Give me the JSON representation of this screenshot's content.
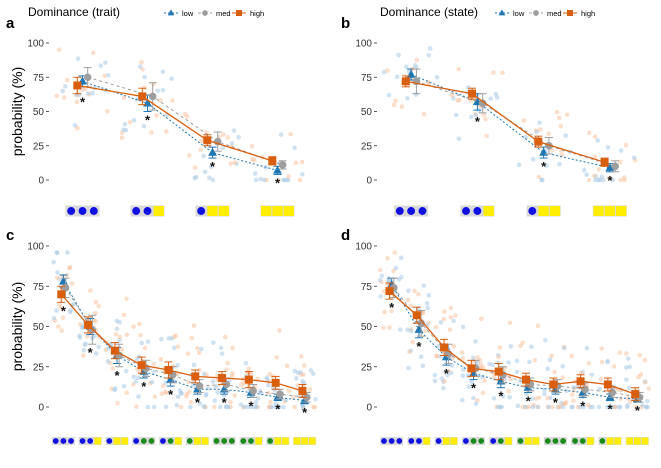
{
  "colors": {
    "low": "#1f77b4",
    "med": "#9e9e9e",
    "high": "#d95f0e",
    "jitter_low": "#a9cbe6",
    "jitter_high": "#f7c3a0",
    "blue_dot": "#1010e0",
    "green_dot": "#1a8a1a",
    "yellow_square": "#ffee00",
    "tile_bg": "#d9d9d9"
  },
  "significance_marker": "*",
  "chart_data": [
    {
      "id": "a",
      "panel_label": "a",
      "type": "line",
      "legend_title": "Dominance (trait)",
      "legend": [
        "low",
        "med",
        "high"
      ],
      "ylabel": "probability (%)",
      "ylim": [
        0,
        100
      ],
      "yticks": [
        "0",
        "25",
        "50",
        "75",
        "100"
      ],
      "categories": [
        "3 blue",
        "2 blue + 1 yellow",
        "1 blue + 2 yellow",
        "3 yellow"
      ],
      "stimuli": [
        [
          "b",
          "b",
          "b"
        ],
        [
          "b",
          "b",
          "y"
        ],
        [
          "b",
          "y",
          "y"
        ],
        [
          "y",
          "y",
          "y"
        ]
      ],
      "series": [
        {
          "name": "low",
          "values": [
            72,
            56,
            20,
            7
          ],
          "err": [
            4,
            6,
            4,
            3
          ]
        },
        {
          "name": "med",
          "values": [
            75,
            61,
            28,
            11
          ],
          "err": [
            7,
            10,
            7,
            3
          ]
        },
        {
          "name": "high",
          "values": [
            69,
            61,
            29,
            14
          ],
          "err": [
            6,
            6,
            4,
            3
          ]
        }
      ],
      "significant": [
        true,
        true,
        true,
        true
      ]
    },
    {
      "id": "b",
      "panel_label": "b",
      "type": "line",
      "legend_title": "Dominance (state)",
      "legend": [
        "low",
        "med",
        "high"
      ],
      "ylabel": "",
      "ylim": [
        0,
        100
      ],
      "yticks": [
        "0",
        "25",
        "50",
        "75",
        "100"
      ],
      "categories": [
        "3 blue",
        "2 blue + 1 yellow",
        "1 blue + 2 yellow",
        "3 yellow"
      ],
      "stimuli": [
        [
          "b",
          "b",
          "b"
        ],
        [
          "b",
          "b",
          "y"
        ],
        [
          "b",
          "y",
          "y"
        ],
        [
          "y",
          "y",
          "y"
        ]
      ],
      "series": [
        {
          "name": "low",
          "values": [
            77,
            57,
            20,
            9
          ],
          "err": [
            4,
            6,
            4,
            3
          ]
        },
        {
          "name": "med",
          "values": [
            72,
            56,
            25,
            10
          ],
          "err": [
            9,
            7,
            6,
            4
          ]
        },
        {
          "name": "high",
          "values": [
            72,
            63,
            28,
            13
          ],
          "err": [
            4,
            4,
            4,
            3
          ]
        }
      ],
      "significant": [
        false,
        true,
        true,
        true
      ]
    },
    {
      "id": "c",
      "panel_label": "c",
      "type": "line",
      "legend_title": "",
      "legend": [],
      "ylabel": "probability (%)",
      "ylim": [
        0,
        100
      ],
      "yticks": [
        "0",
        "25",
        "50",
        "75",
        "100"
      ],
      "categories": [
        "bbb",
        "bb+y",
        "b+yy",
        "bgg",
        "bg+y",
        "g+yy",
        "ggg",
        "gg+y",
        "g+yy",
        "yyy"
      ],
      "stimuli": [
        [
          "b",
          "b",
          "b"
        ],
        [
          "b",
          "b",
          "y"
        ],
        [
          "b",
          "y",
          "y"
        ],
        [
          "b",
          "g",
          "g"
        ],
        [
          "b",
          "g",
          "y"
        ],
        [
          "g",
          "y",
          "y"
        ],
        [
          "g",
          "g",
          "g"
        ],
        [
          "g",
          "g",
          "y"
        ],
        [
          "g",
          "y",
          "y"
        ],
        [
          "y",
          "y",
          "y"
        ]
      ],
      "series": [
        {
          "name": "low",
          "values": [
            78,
            50,
            32,
            22,
            17,
            11,
            11,
            9,
            6,
            4
          ],
          "err": [
            4,
            5,
            5,
            4,
            4,
            3,
            3,
            3,
            2,
            2
          ]
        },
        {
          "name": "med",
          "values": [
            74,
            48,
            32,
            24,
            20,
            13,
            14,
            10,
            8,
            6
          ],
          "err": [
            6,
            9,
            7,
            5,
            5,
            4,
            4,
            4,
            3,
            3
          ]
        },
        {
          "name": "high",
          "values": [
            70,
            51,
            35,
            26,
            23,
            19,
            18,
            17,
            15,
            10
          ],
          "err": [
            5,
            5,
            5,
            5,
            5,
            4,
            4,
            5,
            4,
            4
          ]
        }
      ],
      "significant": [
        true,
        true,
        true,
        true,
        true,
        true,
        true,
        true,
        true,
        true
      ]
    },
    {
      "id": "d",
      "panel_label": "d",
      "type": "line",
      "legend_title": "",
      "legend": [],
      "ylabel": "",
      "ylim": [
        0,
        100
      ],
      "yticks": [
        "0",
        "25",
        "50",
        "75",
        "100"
      ],
      "categories": [
        "bbb",
        "bb+y",
        "b+yy",
        "bgg",
        "bg+y",
        "g+yy",
        "ggg",
        "gg+y",
        "g+yy",
        "yyy"
      ],
      "stimuli": [
        [
          "b",
          "b",
          "b"
        ],
        [
          "b",
          "b",
          "y"
        ],
        [
          "b",
          "y",
          "y"
        ],
        [
          "b",
          "g",
          "g"
        ],
        [
          "b",
          "g",
          "y"
        ],
        [
          "g",
          "y",
          "y"
        ],
        [
          "g",
          "g",
          "g"
        ],
        [
          "g",
          "g",
          "y"
        ],
        [
          "g",
          "y",
          "y"
        ],
        [
          "y",
          "y",
          "y"
        ]
      ],
      "series": [
        {
          "name": "low",
          "values": [
            76,
            48,
            31,
            21,
            16,
            12,
            11,
            9,
            6,
            5
          ],
          "err": [
            4,
            5,
            5,
            4,
            4,
            3,
            3,
            3,
            2,
            2
          ]
        },
        {
          "name": "med",
          "values": [
            74,
            52,
            33,
            24,
            20,
            14,
            13,
            11,
            9,
            6
          ],
          "err": [
            6,
            8,
            6,
            5,
            5,
            4,
            4,
            4,
            3,
            3
          ]
        },
        {
          "name": "high",
          "values": [
            72,
            57,
            37,
            24,
            22,
            17,
            14,
            16,
            14,
            8
          ],
          "err": [
            5,
            5,
            5,
            5,
            5,
            4,
            4,
            4,
            4,
            4
          ]
        }
      ],
      "significant": [
        true,
        true,
        true,
        true,
        true,
        true,
        true,
        true,
        true,
        true
      ]
    }
  ]
}
